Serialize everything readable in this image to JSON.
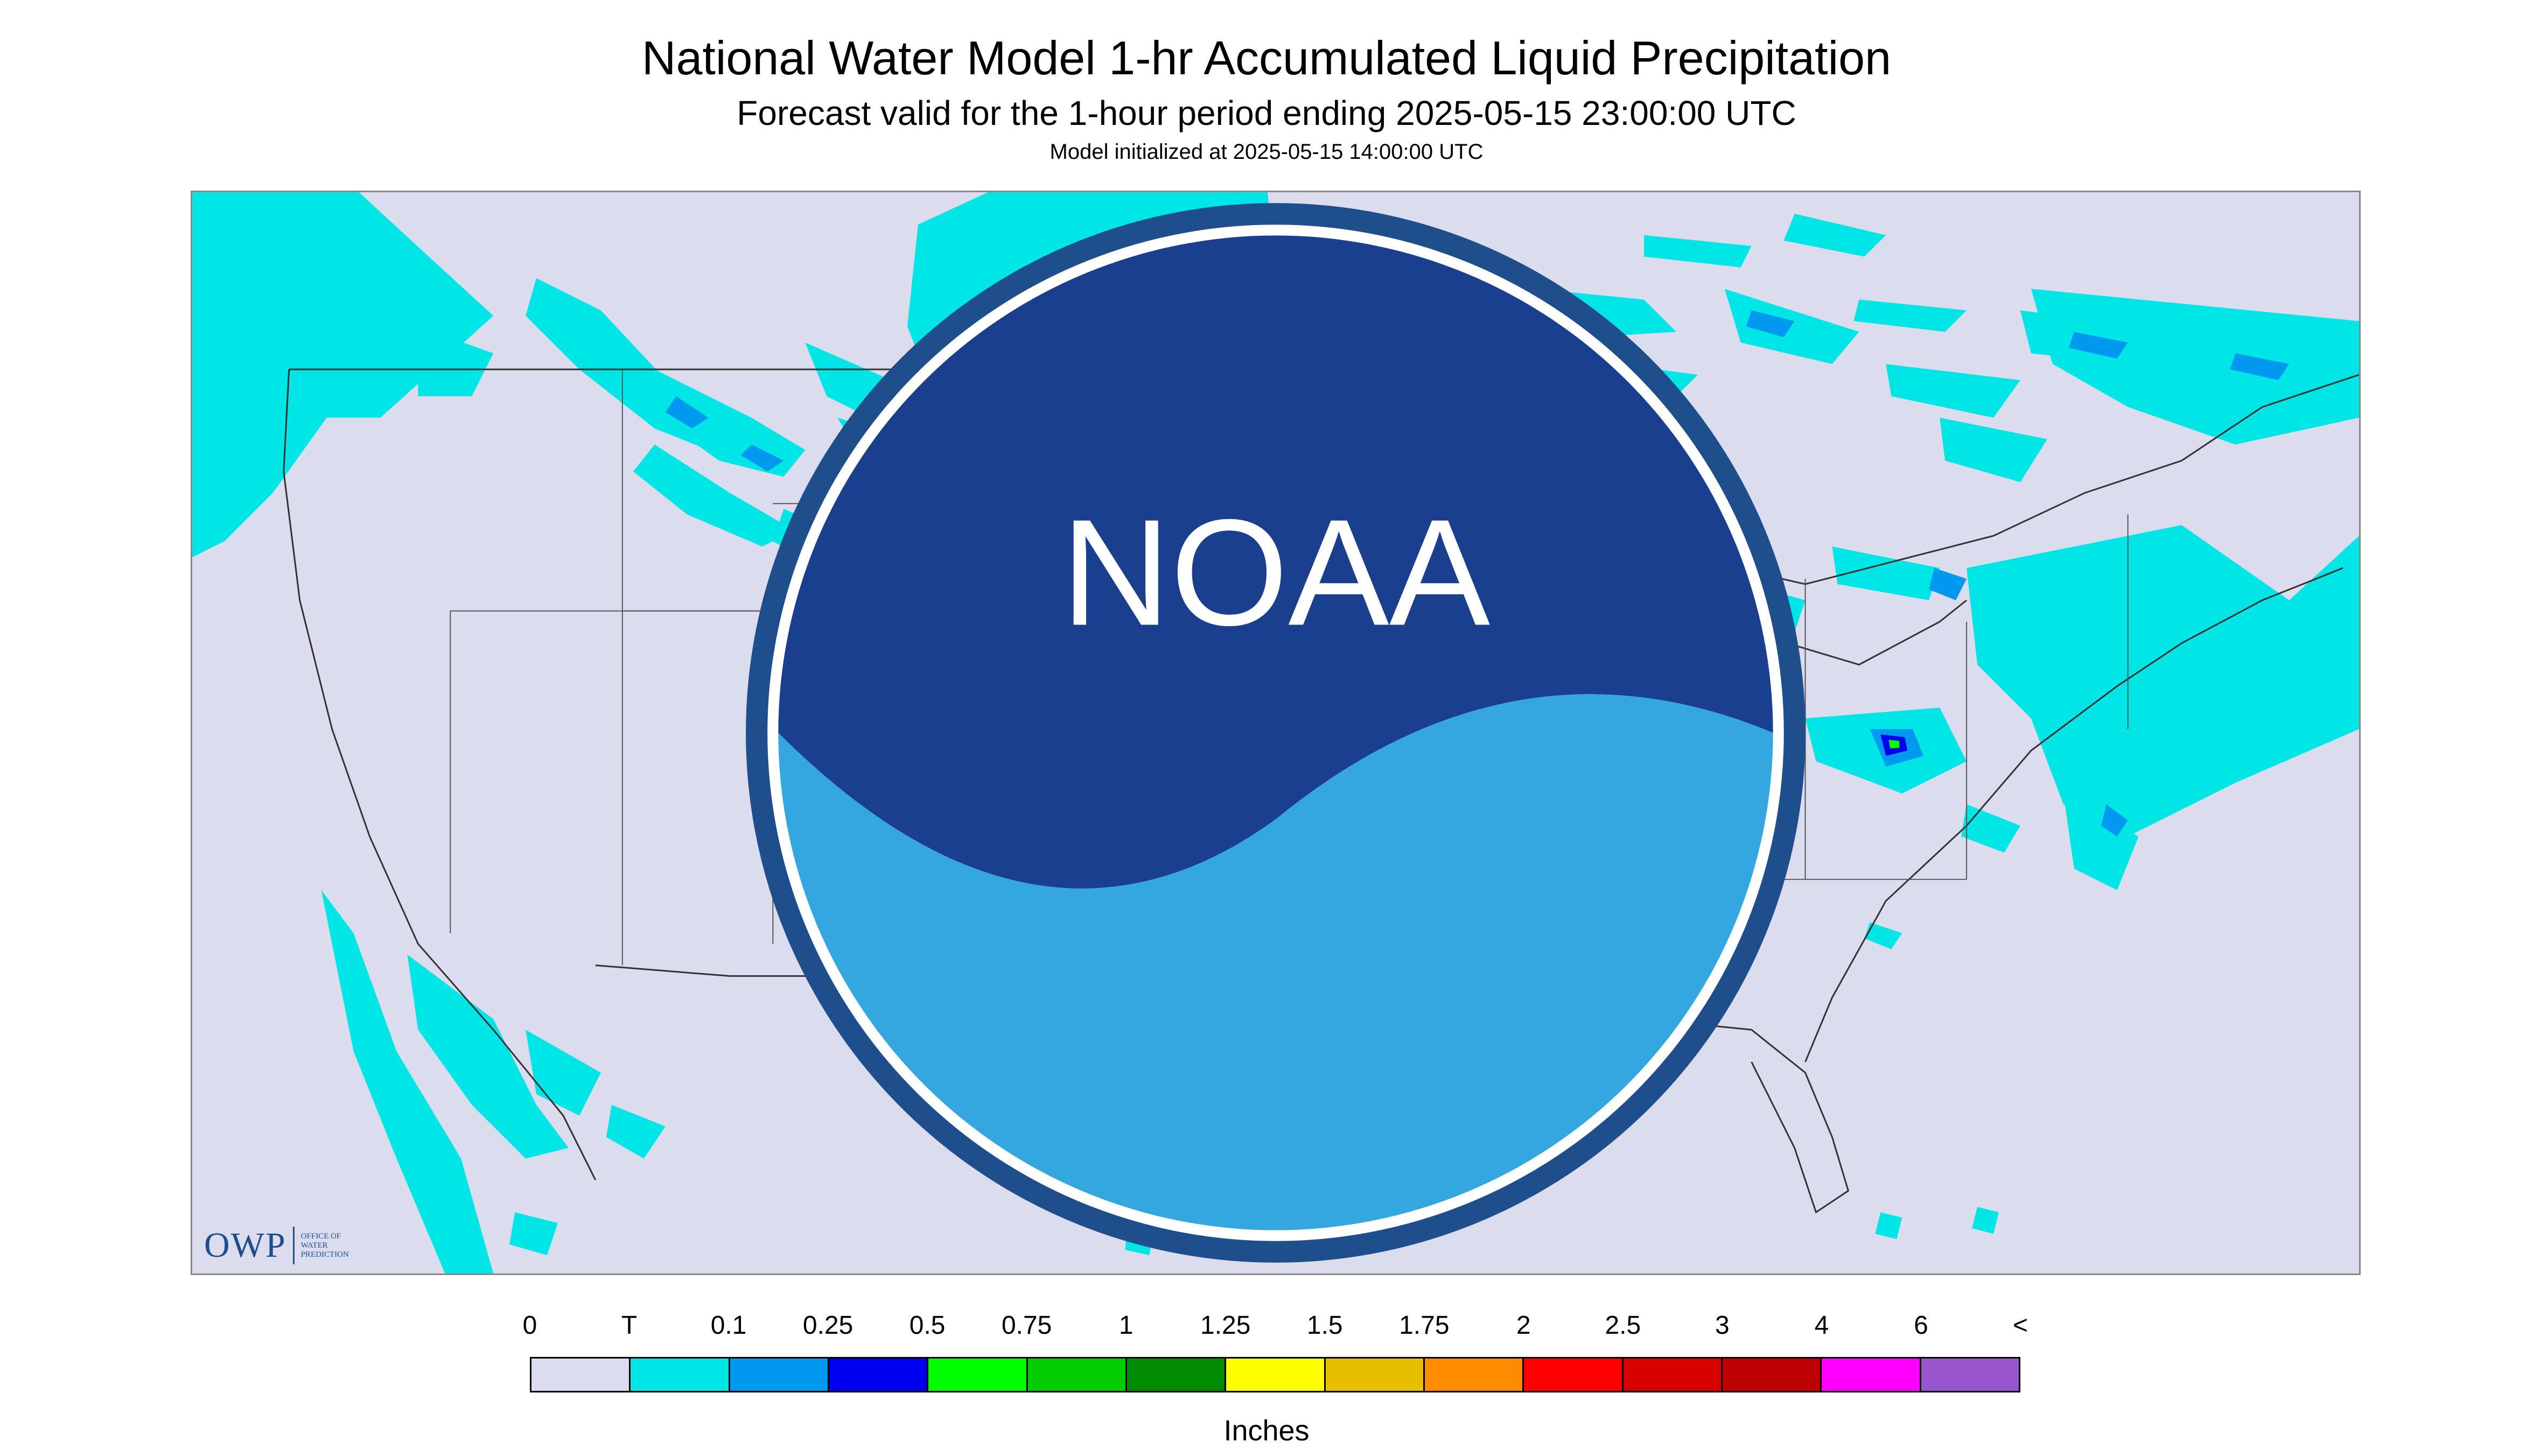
{
  "header": {
    "title": "National Water Model 1-hr Accumulated Liquid Precipitation",
    "subtitle": "Forecast valid for the 1-hour period ending 2025-05-15 23:00:00 UTC",
    "init_text": "Model initialized at 2025-05-15 14:00:00 UTC"
  },
  "branding": {
    "owp_mark": "OWP",
    "owp_text_1": "OFFICE OF",
    "owp_text_2": "WATER",
    "owp_text_3": "PREDICTION",
    "noaa_label": "NOAA",
    "noaa_icon": "noaa-logo-icon"
  },
  "map": {
    "region": "Contiguous United States",
    "background_color": "#dcdcef",
    "no_data_color": "#dcdcef"
  },
  "legend": {
    "units": "Inches",
    "labels": [
      "0",
      "T",
      "0.1",
      "0.25",
      "0.5",
      "0.75",
      "1",
      "1.25",
      "1.5",
      "1.75",
      "2",
      "2.5",
      "3",
      "4",
      "6",
      "<"
    ],
    "colors": [
      "#dcdcef",
      "#00e5e5",
      "#0099f0",
      "#0000f0",
      "#00ff00",
      "#00cc00",
      "#008c00",
      "#ffff00",
      "#e5bf00",
      "#ff8c00",
      "#ff0000",
      "#d90000",
      "#bf0000",
      "#ff00ff",
      "#9955cc"
    ]
  }
}
